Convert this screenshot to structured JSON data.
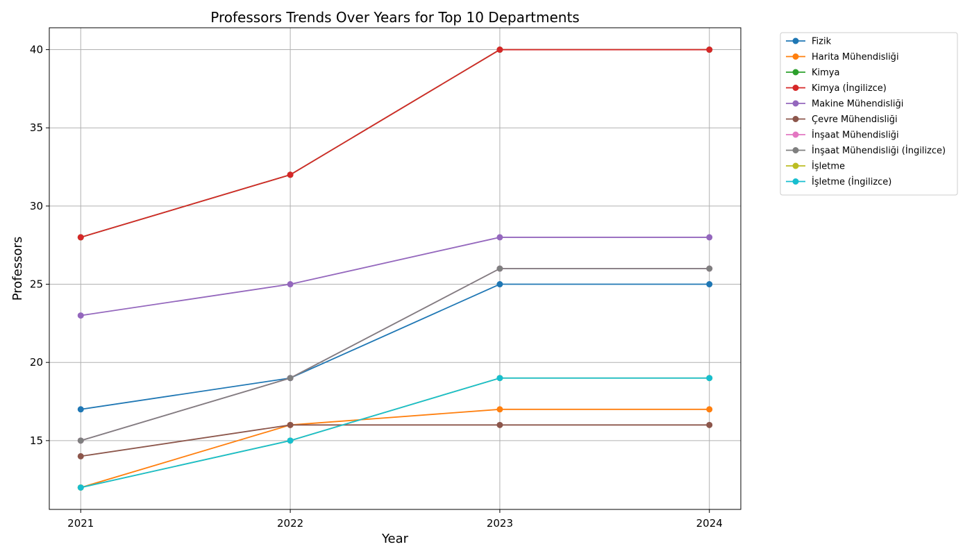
{
  "chart_data": {
    "type": "line",
    "title": "Professors Trends Over Years for Top 10 Departments",
    "xlabel": "Year",
    "ylabel": "Professors",
    "x": [
      2021,
      2022,
      2023,
      2024
    ],
    "xticks": [
      "2021",
      "2022",
      "2023",
      "2024"
    ],
    "yticks": [
      15,
      20,
      25,
      30,
      35,
      40
    ],
    "xlim": [
      2020.85,
      2024.15
    ],
    "ylim": [
      10.6,
      41.4
    ],
    "grid": true,
    "legend_position": "outside-top-right",
    "series": [
      {
        "name": "Fizik",
        "color": "#1f77b4",
        "values": [
          17,
          19,
          25,
          25
        ]
      },
      {
        "name": "Harita Mühendisliği",
        "color": "#ff7f0e",
        "values": [
          12,
          16,
          17,
          17
        ]
      },
      {
        "name": "Kimya",
        "color": "#2ca02c",
        "values": [
          28,
          32,
          40,
          40
        ]
      },
      {
        "name": "Kimya (İngilizce)",
        "color": "#d62728",
        "values": [
          28,
          32,
          40,
          40
        ]
      },
      {
        "name": "Makine Mühendisliği",
        "color": "#9467bd",
        "values": [
          23,
          25,
          28,
          28
        ]
      },
      {
        "name": "Çevre Mühendisliği",
        "color": "#8c564b",
        "values": [
          14,
          16,
          16,
          16
        ]
      },
      {
        "name": "İnşaat Mühendisliği",
        "color": "#e377c2",
        "values": [
          15,
          19,
          26,
          26
        ]
      },
      {
        "name": "İnşaat Mühendisliği (İngilizce)",
        "color": "#7f7f7f",
        "values": [
          15,
          19,
          26,
          26
        ]
      },
      {
        "name": "İşletme",
        "color": "#bcbd22",
        "values": [
          12,
          15,
          19,
          19
        ]
      },
      {
        "name": "İşletme (İngilizce)",
        "color": "#17becf",
        "values": [
          12,
          15,
          19,
          19
        ]
      }
    ]
  }
}
